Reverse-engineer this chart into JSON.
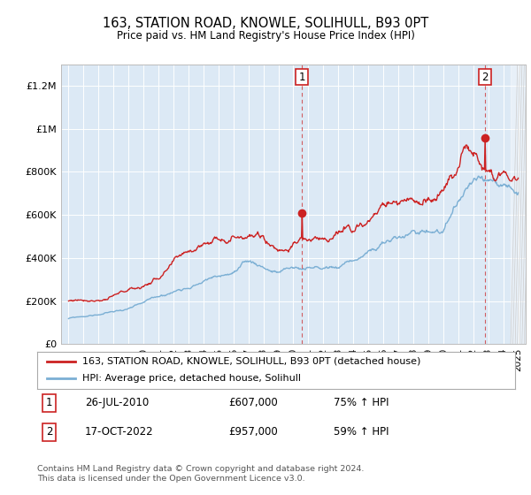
{
  "title": "163, STATION ROAD, KNOWLE, SOLIHULL, B93 0PT",
  "subtitle": "Price paid vs. HM Land Registry's House Price Index (HPI)",
  "plot_bg_color": "#dce9f5",
  "hpi_color": "#7bafd4",
  "price_color": "#cc2222",
  "legend_line1": "163, STATION ROAD, KNOWLE, SOLIHULL, B93 0PT (detached house)",
  "legend_line2": "HPI: Average price, detached house, Solihull",
  "footer": "Contains HM Land Registry data © Crown copyright and database right 2024.\nThis data is licensed under the Open Government Licence v3.0.",
  "ylim_max": 1300000,
  "yticks": [
    0,
    200000,
    400000,
    600000,
    800000,
    1000000,
    1200000
  ],
  "ytick_labels": [
    "£0",
    "£200K",
    "£400K",
    "£600K",
    "£800K",
    "£1M",
    "£1.2M"
  ],
  "sale1_year": 2010.57,
  "sale1_price": 607000,
  "sale2_year": 2022.79,
  "sale2_price": 957000,
  "xmin": 1994.5,
  "xmax": 2025.5
}
